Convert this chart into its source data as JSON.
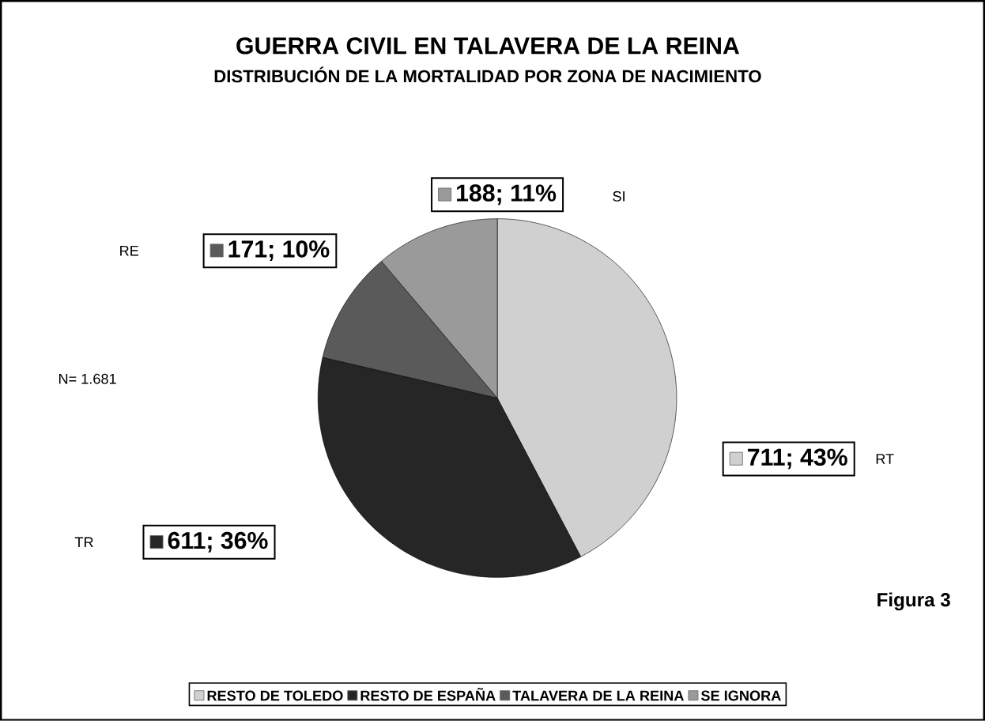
{
  "chart_data": {
    "type": "pie",
    "title": "GUERRA CIVIL EN TALAVERA DE LA REINA",
    "subtitle": "DISTRIBUCIÓN DE LA MORTALIDAD POR ZONA DE NACIMIENTO",
    "categories": [
      "RESTO DE TOLEDO",
      "RESTO DE ESPAÑA",
      "TALAVERA DE LA REINA",
      "SE IGNORA"
    ],
    "values": [
      711,
      611,
      171,
      188
    ],
    "value_labels": [
      "711; 43%",
      "611; 36%",
      "171; 10%",
      "188; 11%"
    ],
    "colors": [
      "#d0d0d0",
      "#262626",
      "#5a5a5a",
      "#9a9a9a"
    ],
    "legend": "bottom",
    "annotations": [
      "RT",
      "TR",
      "RE",
      "SI",
      "N= 1.681",
      "Figura 3"
    ]
  }
}
